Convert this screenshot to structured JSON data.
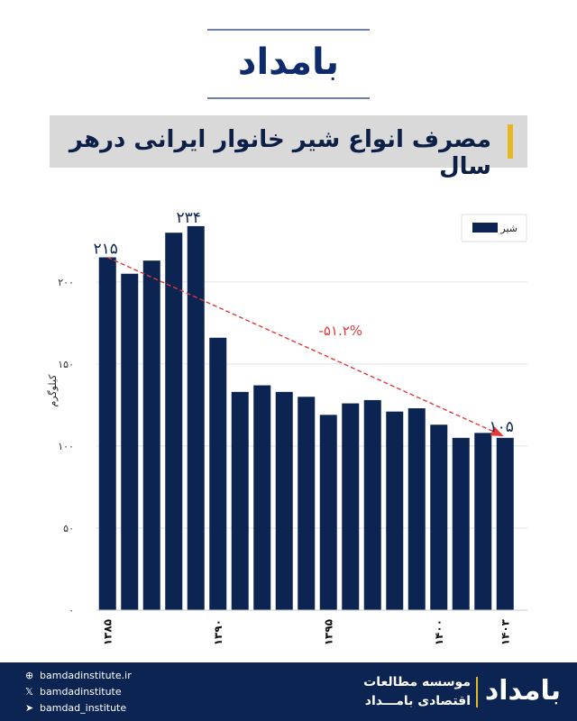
{
  "brand": {
    "logo_text": "بامداد"
  },
  "title": "مصرف انواع شیر خانوار ایرانی درهر سال",
  "footer": {
    "contacts": [
      {
        "icon": "globe-icon",
        "glyph": "⊕",
        "text": "bamdadinstitute.ir"
      },
      {
        "icon": "x-icon",
        "glyph": "𝕏",
        "text": "bamdadinstitute"
      },
      {
        "icon": "telegram-icon",
        "glyph": "➤",
        "text": "bamdad_institute"
      }
    ],
    "org_line1": "موسسه مطالعات",
    "org_line2": "اقتصادی بامـــداد",
    "logo_text": "بامداد"
  },
  "colors": {
    "bar": "#0c2451",
    "trend": "#e03a3a",
    "accent": "#e6b821",
    "footer_bg": "#0c2451"
  },
  "chart_data": {
    "type": "bar",
    "legend": {
      "label": "شیر",
      "position": "top-right"
    },
    "ylabel": "کیلوگرم",
    "ylim": [
      0,
      240
    ],
    "yticks": [
      0,
      50,
      100,
      150,
      200
    ],
    "ytick_labels": [
      "۰",
      "۵۰",
      "۱۰۰",
      "۱۵۰",
      "۲۰۰"
    ],
    "x": [
      1385,
      1386,
      1387,
      1388,
      1389,
      1390,
      1391,
      1392,
      1393,
      1394,
      1395,
      1396,
      1397,
      1398,
      1399,
      1400,
      1401,
      1402,
      1403
    ],
    "xtick_years": [
      1385,
      1390,
      1395,
      1400,
      1403
    ],
    "xtick_labels": [
      "۱۳۸۵",
      "۱۳۹۰",
      "۱۳۹۵",
      "۱۴۰۰",
      "۱۴۰۳"
    ],
    "values": [
      215,
      205,
      213,
      230,
      234,
      166,
      133,
      137,
      133,
      130,
      119,
      126,
      128,
      121,
      123,
      113,
      105,
      108,
      105
    ],
    "grid": true,
    "annotations": {
      "first_value_label": "۲۱۵",
      "peak_value_label": "۲۳۴",
      "last_value_label": "۱۰۵",
      "trend_label": "-۵۱.۲%"
    }
  }
}
